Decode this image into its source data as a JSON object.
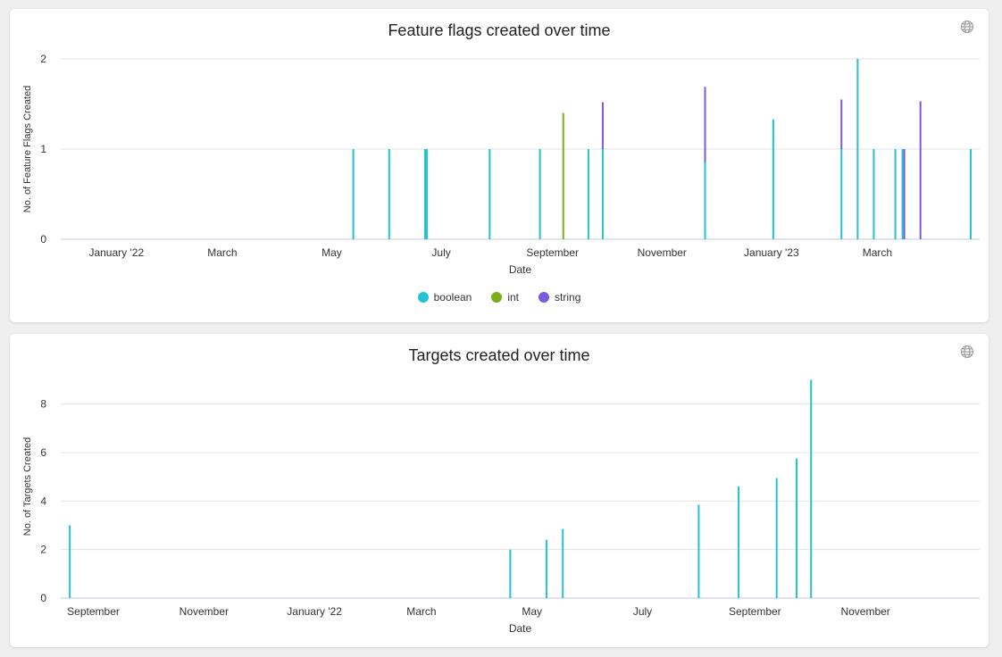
{
  "colors": {
    "boolean": "#22c3d4",
    "int": "#7aae1a",
    "string": "#7b5ae0",
    "grid": "#e3e3e3",
    "axis": "#c0c8e0"
  },
  "chart_data": [
    {
      "type": "bar",
      "title": "Feature flags created over time",
      "xlabel": "Date",
      "ylabel": "No. of Feature Flags Created",
      "x_range": [
        "2021-12-01",
        "2023-04-27"
      ],
      "ylim": [
        0,
        2
      ],
      "yticks": [
        "0",
        "1",
        "2"
      ],
      "xticks": [
        {
          "date": "2022-01-01",
          "label": "January '22"
        },
        {
          "date": "2022-03-01",
          "label": "March"
        },
        {
          "date": "2022-05-01",
          "label": "May"
        },
        {
          "date": "2022-07-01",
          "label": "July"
        },
        {
          "date": "2022-09-01",
          "label": "September"
        },
        {
          "date": "2022-11-01",
          "label": "November"
        },
        {
          "date": "2023-01-01",
          "label": "January '23"
        },
        {
          "date": "2023-03-01",
          "label": "March"
        }
      ],
      "legend": "bottom",
      "grid": true,
      "series": [
        {
          "name": "boolean",
          "points": [
            [
              "2022-05-13",
              1
            ],
            [
              "2022-06-02",
              1
            ],
            [
              "2022-06-22",
              1
            ],
            [
              "2022-06-23",
              1
            ],
            [
              "2022-07-28",
              1
            ],
            [
              "2022-08-25",
              1
            ],
            [
              "2022-09-21",
              1
            ],
            [
              "2022-09-29",
              1
            ],
            [
              "2022-11-25",
              0.85
            ],
            [
              "2023-01-02",
              1.33
            ],
            [
              "2023-02-09",
              1
            ],
            [
              "2023-02-18",
              2
            ],
            [
              "2023-02-27",
              1
            ],
            [
              "2023-03-11",
              1
            ],
            [
              "2023-03-15",
              1
            ],
            [
              "2023-04-22",
              1
            ]
          ]
        },
        {
          "name": "int",
          "points": [
            [
              "2022-09-07",
              1.4
            ]
          ]
        },
        {
          "name": "string",
          "points": [
            [
              "2022-09-29",
              0.52
            ],
            [
              "2022-11-25",
              0.84
            ],
            [
              "2023-02-09",
              0.55
            ],
            [
              "2023-03-16",
              1
            ],
            [
              "2023-03-25",
              1.53
            ]
          ]
        }
      ]
    },
    {
      "type": "bar",
      "title": "Targets created over time",
      "xlabel": "Date",
      "ylabel": "No. of Targets Created",
      "x_range": [
        "2021-08-14",
        "2023-01-03"
      ],
      "ylim": [
        0,
        9.2
      ],
      "yticks": [
        "0",
        "2",
        "4",
        "6",
        "8"
      ],
      "xticks": [
        {
          "date": "2021-09-01",
          "label": "September"
        },
        {
          "date": "2021-11-01",
          "label": "November"
        },
        {
          "date": "2022-01-01",
          "label": "January '22"
        },
        {
          "date": "2022-03-01",
          "label": "March"
        },
        {
          "date": "2022-05-01",
          "label": "May"
        },
        {
          "date": "2022-07-01",
          "label": "July"
        },
        {
          "date": "2022-09-01",
          "label": "September"
        },
        {
          "date": "2022-11-01",
          "label": "November"
        }
      ],
      "grid": true,
      "series": [
        {
          "points": [
            [
              "2021-08-19",
              3
            ],
            [
              "2022-04-19",
              2
            ],
            [
              "2022-05-09",
              2.4
            ],
            [
              "2022-05-18",
              2.85
            ],
            [
              "2022-08-01",
              3.85
            ],
            [
              "2022-08-23",
              4.6
            ],
            [
              "2022-09-13",
              4.95
            ],
            [
              "2022-09-24",
              5.75
            ],
            [
              "2022-10-02",
              9
            ]
          ]
        }
      ]
    }
  ]
}
